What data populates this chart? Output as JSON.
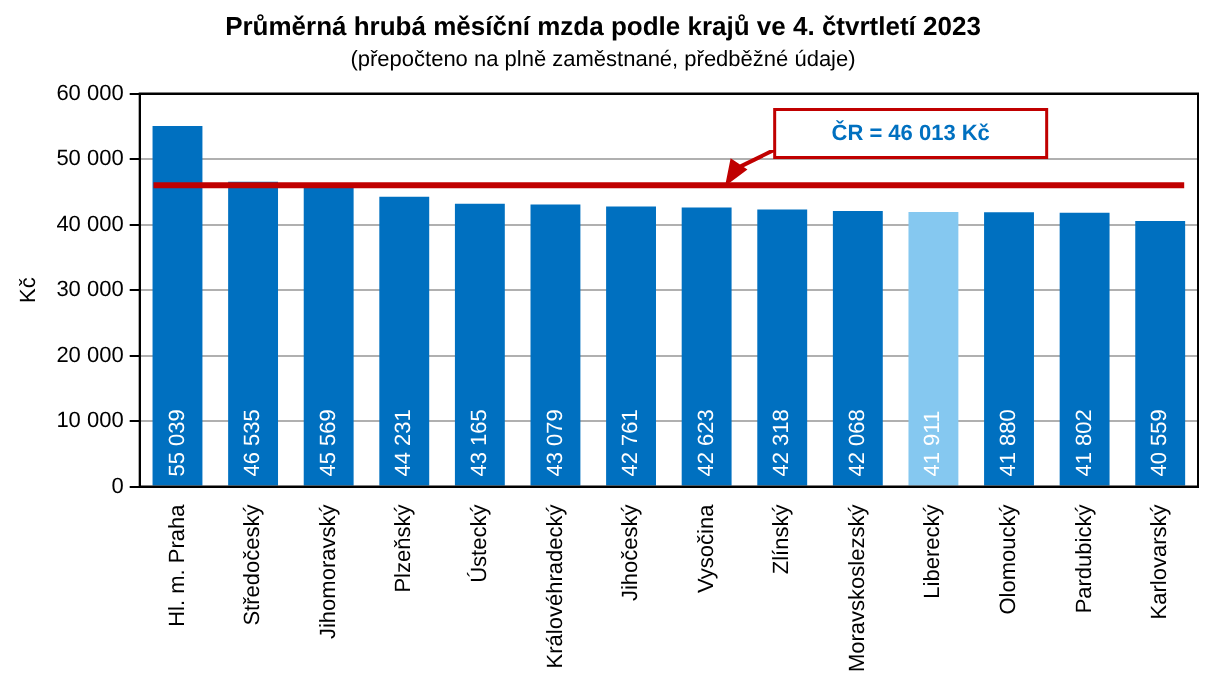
{
  "chart_data": {
    "type": "bar",
    "title": "Průměrná hrubá měsíční mzda podle krajů ve 4. čtvrtletí 2023",
    "subtitle": "(přepočteno na plně zaměstnané, předběžné údaje)",
    "ylabel": "Kč",
    "categories": [
      "Hl. m. Praha",
      "Středočeský",
      "Jihomoravský",
      "Plzeňský",
      "Ústecký",
      "Královéhradecký",
      "Jihočeský",
      "Vysočina",
      "Zlínský",
      "Moravskoslezský",
      "Liberecký",
      "Olomoucký",
      "Pardubický",
      "Karlovarský"
    ],
    "values": [
      55039,
      46535,
      45569,
      44231,
      43165,
      43079,
      42761,
      42623,
      42318,
      42068,
      41911,
      41880,
      41802,
      40559
    ],
    "colors": [
      "#0070c0",
      "#0070c0",
      "#0070c0",
      "#0070c0",
      "#0070c0",
      "#0070c0",
      "#0070c0",
      "#0070c0",
      "#0070c0",
      "#0070c0",
      "#85c8f0",
      "#0070c0",
      "#0070c0",
      "#0070c0"
    ],
    "ylim": [
      0,
      60000
    ],
    "yticks": [
      {
        "value": 0,
        "label": "0"
      },
      {
        "value": 10000,
        "label": "10 000"
      },
      {
        "value": 20000,
        "label": "20 000"
      },
      {
        "value": 30000,
        "label": "30 000"
      },
      {
        "value": 40000,
        "label": "40 000"
      },
      {
        "value": 50000,
        "label": "50 000"
      },
      {
        "value": 60000,
        "label": "60 000"
      }
    ],
    "grid": "y",
    "legend": false,
    "data_labels": true,
    "ref_lines": [
      {
        "axis": "y",
        "value": 46013,
        "label": "ČR = 46 013 Kč",
        "color": "#c00000"
      }
    ]
  }
}
